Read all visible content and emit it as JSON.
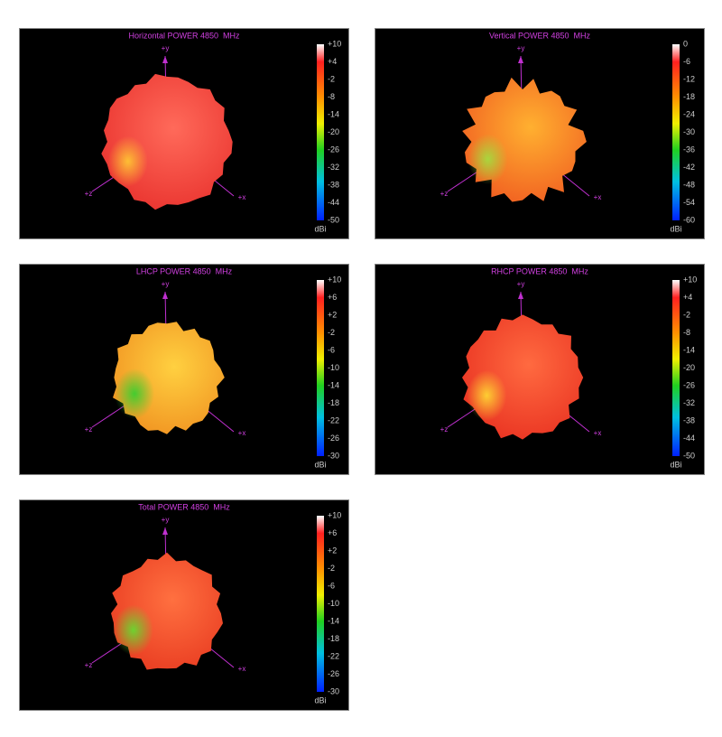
{
  "panels": [
    {
      "title": "Horizontal POWER 4850  MHz",
      "colorbar_ticks": [
        "+10",
        "+4",
        "-2",
        "-8",
        "-14",
        "-20",
        "-26",
        "-32",
        "-38",
        "-44",
        "-50"
      ],
      "unit": "dBi",
      "axes": {
        "y": "+y",
        "z": "+z",
        "x": "+x"
      }
    },
    {
      "title": "Vertical POWER 4850  MHz",
      "colorbar_ticks": [
        "0",
        "-6",
        "-12",
        "-18",
        "-24",
        "-30",
        "-36",
        "-42",
        "-48",
        "-54",
        "-60"
      ],
      "unit": "dBi",
      "axes": {
        "y": "+y",
        "z": "+z",
        "x": "+x"
      }
    },
    {
      "title": "LHCP POWER 4850  MHz",
      "colorbar_ticks": [
        "+10",
        "+6",
        "+2",
        "-2",
        "-6",
        "-10",
        "-14",
        "-18",
        "-22",
        "-26",
        "-30"
      ],
      "unit": "dBi",
      "axes": {
        "y": "+y",
        "z": "+z",
        "x": "+x"
      }
    },
    {
      "title": "RHCP POWER 4850  MHz",
      "colorbar_ticks": [
        "+10",
        "+4",
        "-2",
        "-8",
        "-14",
        "-20",
        "-26",
        "-32",
        "-38",
        "-44",
        "-50"
      ],
      "unit": "dBi",
      "axes": {
        "y": "+y",
        "z": "+z",
        "x": "+x"
      }
    },
    {
      "title": "Total POWER 4850  MHz",
      "colorbar_ticks": [
        "+10",
        "+6",
        "+2",
        "-2",
        "-6",
        "-10",
        "-14",
        "-18",
        "-22",
        "-26",
        "-30"
      ],
      "unit": "dBi",
      "axes": {
        "y": "+y",
        "z": "+z",
        "x": "+x"
      }
    }
  ]
}
